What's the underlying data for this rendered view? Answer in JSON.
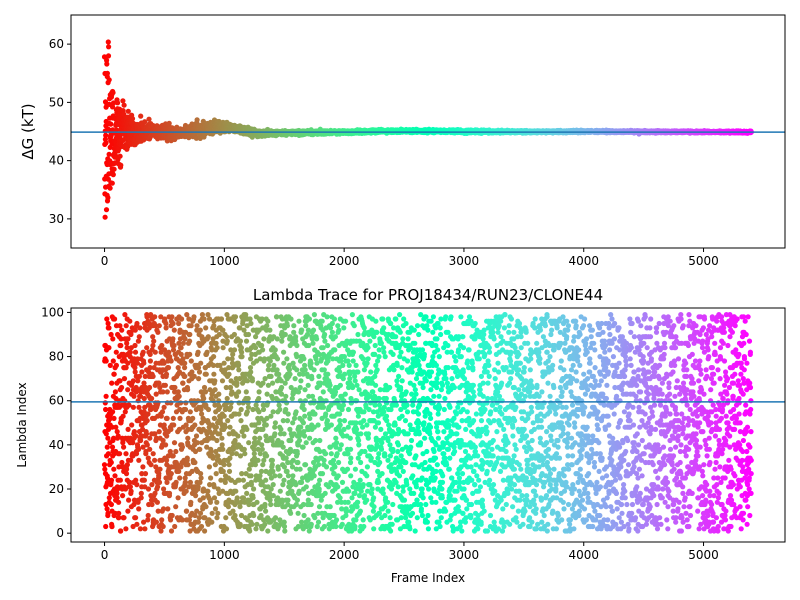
{
  "chart_data": [
    {
      "type": "scatter",
      "title": "",
      "xlabel": "",
      "ylabel": "ΔG (kT)",
      "xlim": [
        -280,
        5680
      ],
      "ylim": [
        25,
        65
      ],
      "xticks": [
        "0",
        "1000",
        "2000",
        "3000",
        "4000",
        "5000"
      ],
      "yticks": [
        "30",
        "40",
        "50",
        "60"
      ],
      "hline": 44.9,
      "n_points": 5400,
      "colormap": "rainbow, by frame index (red at frame 0 to violet at last frame)",
      "series_summary": "running free energy estimate converging from 30–62 kT spread in first ~200 frames to ~44.9 kT",
      "profile": [
        [
          0,
          44.9,
          15
        ],
        [
          100,
          44.9,
          6
        ],
        [
          200,
          45.0,
          3.2
        ],
        [
          300,
          45.0,
          2.3
        ],
        [
          400,
          45.1,
          1.6
        ],
        [
          600,
          44.7,
          1.0
        ],
        [
          800,
          45.2,
          1.1
        ],
        [
          950,
          46.0,
          1.0
        ],
        [
          1100,
          45.5,
          0.7
        ],
        [
          1300,
          44.6,
          0.5
        ],
        [
          1600,
          44.8,
          0.35
        ],
        [
          2000,
          44.9,
          0.3
        ],
        [
          2500,
          45.1,
          0.25
        ],
        [
          3000,
          45.0,
          0.25
        ],
        [
          3500,
          44.95,
          0.2
        ],
        [
          4000,
          45.0,
          0.2
        ],
        [
          5400,
          44.9,
          0.15
        ]
      ]
    },
    {
      "type": "scatter",
      "title": "Lambda Trace for PROJ18434/RUN23/CLONE44",
      "xlabel": "Frame Index",
      "ylabel": "Lambda Index",
      "xlim": [
        -280,
        5680
      ],
      "ylim": [
        -4,
        102
      ],
      "xticks": [
        "0",
        "1000",
        "2000",
        "3000",
        "4000",
        "5000"
      ],
      "yticks": [
        "0",
        "20",
        "40",
        "60",
        "80",
        "100"
      ],
      "hline": 59.5,
      "n_points": 5400,
      "lambda_range": [
        1,
        99
      ],
      "colormap": "rainbow, by frame index (red at frame 0 to violet at last frame)",
      "series_summary": "lambda index sampled uniformly between 1 and 99 across all frames"
    }
  ]
}
